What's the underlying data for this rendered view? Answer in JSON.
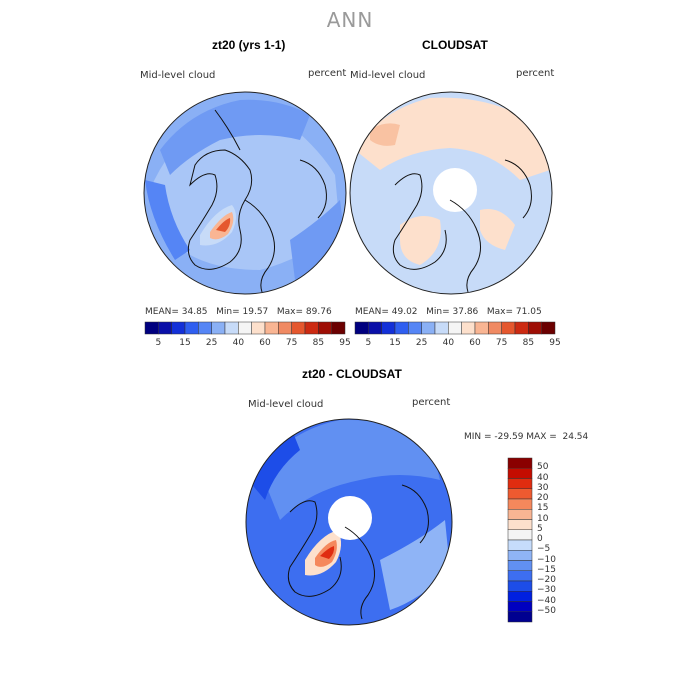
{
  "title": "ANN",
  "panels": [
    {
      "title": "zt20 (yrs 1-1)",
      "varname": "Mid-level cloud",
      "units": "percent",
      "stats": {
        "mean_label": "MEAN=",
        "mean": "34.85",
        "min_label": "Min=",
        "min": "19.57",
        "max_label": "Max=",
        "max": "89.76"
      }
    },
    {
      "title": "CLOUDSAT",
      "varname": "Mid-level cloud",
      "units": "percent",
      "stats": {
        "mean_label": "MEAN=",
        "mean": "49.02",
        "min_label": "Min=",
        "min": "37.86",
        "max_label": "Max=",
        "max": "71.05"
      }
    }
  ],
  "diff_panel": {
    "title": "zt20 - CLOUDSAT",
    "varname": "Mid-level cloud",
    "units": "percent",
    "minmax": "MIN = -29.59 MAX =  24.54"
  },
  "colors": {
    "abs_scale": [
      "#00007f",
      "#0a0fa8",
      "#1330d8",
      "#2f5ef0",
      "#5585f5",
      "#8ab0f5",
      "#c7dbf8",
      "#f5f5f5",
      "#fde0cc",
      "#f9b593",
      "#f08a63",
      "#e5572e",
      "#cc2a12",
      "#9e0e05",
      "#6b0000"
    ],
    "diff_scale": [
      "#000090",
      "#0000c0",
      "#0020e0",
      "#1d4de8",
      "#3d6ef0",
      "#6190f2",
      "#8fb4f6",
      "#c6dcfb",
      "#f4f4f4",
      "#fde0cc",
      "#f9b593",
      "#f5885c",
      "#ee5a30",
      "#e02c10",
      "#c40c00",
      "#8a0000"
    ]
  },
  "chart_data": [
    {
      "type": "heatmap",
      "title": "zt20 (yrs 1-1)",
      "projection": "north-polar-stereographic",
      "variable": "Mid-level cloud",
      "units": "percent",
      "mean": 34.85,
      "min": 19.57,
      "max": 89.76,
      "levels": [
        5,
        15,
        25,
        40,
        60,
        75,
        85,
        95
      ],
      "tick_labels": [
        "5",
        "15",
        "25",
        "40",
        "60",
        "75",
        "85",
        "95"
      ]
    },
    {
      "type": "heatmap",
      "title": "CLOUDSAT",
      "projection": "north-polar-stereographic",
      "variable": "Mid-level cloud",
      "units": "percent",
      "mean": 49.02,
      "min": 37.86,
      "max": 71.05,
      "levels": [
        5,
        15,
        25,
        40,
        60,
        75,
        85,
        95
      ],
      "tick_labels": [
        "5",
        "15",
        "25",
        "40",
        "60",
        "75",
        "85",
        "95"
      ]
    },
    {
      "type": "heatmap",
      "title": "zt20 - CLOUDSAT",
      "projection": "north-polar-stereographic",
      "variable": "Mid-level cloud",
      "units": "percent",
      "min": -29.59,
      "max": 24.54,
      "levels": [
        -50,
        -40,
        -30,
        -20,
        -15,
        -10,
        -5,
        0,
        5,
        10,
        15,
        20,
        30,
        40,
        50
      ],
      "tick_labels": [
        "50",
        "40",
        "30",
        "20",
        "15",
        "10",
        "5",
        "0",
        "−5",
        "−10",
        "−15",
        "−20",
        "−30",
        "−40",
        "−50"
      ]
    }
  ]
}
